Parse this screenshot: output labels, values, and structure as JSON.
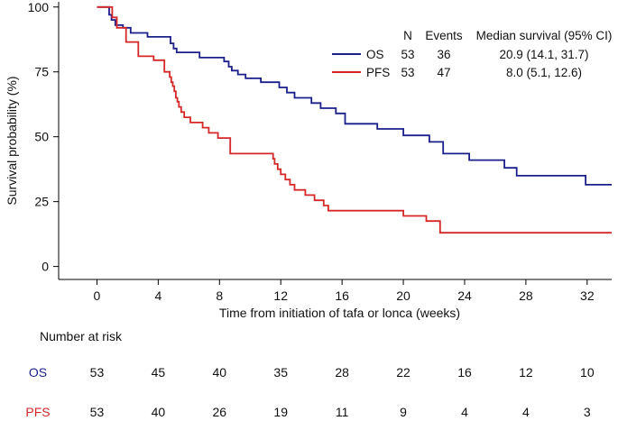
{
  "chart_data": {
    "type": "line",
    "subtype": "kaplan-meier step",
    "xlabel": "Time from initiation of tafa or lonca (weeks)",
    "ylabel": "Survival probability (%)",
    "xlim": [
      -2.5,
      33.6
    ],
    "ylim": [
      -5,
      102
    ],
    "x_ticks": [
      0,
      4,
      8,
      12,
      16,
      20,
      24,
      28,
      32
    ],
    "y_ticks": [
      0,
      25,
      50,
      75,
      100
    ],
    "legend": {
      "position": "top-right",
      "headers": {
        "n": "N",
        "events": "Events",
        "median": "Median survival (95% CI)"
      }
    },
    "series": [
      {
        "name": "OS",
        "color": "#1b1f8a",
        "n": "53",
        "events": "36",
        "median": "20.9 (14.1, 31.7)",
        "x": [
          0,
          0.8,
          0.95,
          1.2,
          1.7,
          2.2,
          2.7,
          3.3,
          4.8,
          5.0,
          5.2,
          6.7,
          8.3,
          8.6,
          8.8,
          9.2,
          9.7,
          10.7,
          11.9,
          12.4,
          12.9,
          14.0,
          14.6,
          15.6,
          16.2,
          18.3,
          20.0,
          21.7,
          22.6,
          24.3,
          26.6,
          27.4,
          31.9,
          33.6
        ],
        "y": [
          100,
          97,
          95,
          93,
          92,
          90,
          90,
          88.5,
          86,
          84,
          82.5,
          80.5,
          79,
          77,
          75.5,
          74,
          72.5,
          71,
          69,
          67,
          65,
          63,
          61,
          59,
          55,
          53,
          50.5,
          48,
          43.5,
          41,
          38,
          35,
          31.5,
          31.5
        ]
      },
      {
        "name": "PFS",
        "color": "#d62728",
        "n": "53",
        "events": "47",
        "median": "8.0 (5.1, 12.6)",
        "x": [
          0,
          1.0,
          1.3,
          1.9,
          2.7,
          3.7,
          4.4,
          4.75,
          4.85,
          4.95,
          5.05,
          5.15,
          5.25,
          5.35,
          5.5,
          5.7,
          6.1,
          6.9,
          7.3,
          7.9,
          8.7,
          11.5,
          11.6,
          11.8,
          12.0,
          12.3,
          12.6,
          12.9,
          13.6,
          14.2,
          14.8,
          15.1,
          15.8,
          20.0,
          21.5,
          22.4,
          33.6
        ],
        "y": [
          100,
          96,
          92,
          86.5,
          81,
          79.5,
          75,
          73,
          71,
          69.5,
          67.5,
          65,
          63.5,
          61.5,
          59.5,
          57.5,
          55.5,
          53.5,
          51.5,
          49.5,
          43.5,
          41.5,
          39.5,
          37.5,
          35.5,
          33.5,
          31.5,
          29.5,
          27.5,
          25.5,
          23.5,
          21.5,
          21.5,
          19.5,
          17.5,
          13,
          13
        ]
      }
    ]
  },
  "risk_table": {
    "title": "Number at risk",
    "times": [
      0,
      4,
      8,
      12,
      16,
      20,
      24,
      28,
      32
    ],
    "rows": [
      {
        "name": "OS",
        "color": "#1b1f8a",
        "values": [
          "53",
          "45",
          "40",
          "35",
          "28",
          "22",
          "16",
          "12",
          "10"
        ]
      },
      {
        "name": "PFS",
        "color": "#d62728",
        "values": [
          "53",
          "40",
          "26",
          "19",
          "11",
          "9",
          "4",
          "4",
          "3"
        ]
      }
    ]
  }
}
